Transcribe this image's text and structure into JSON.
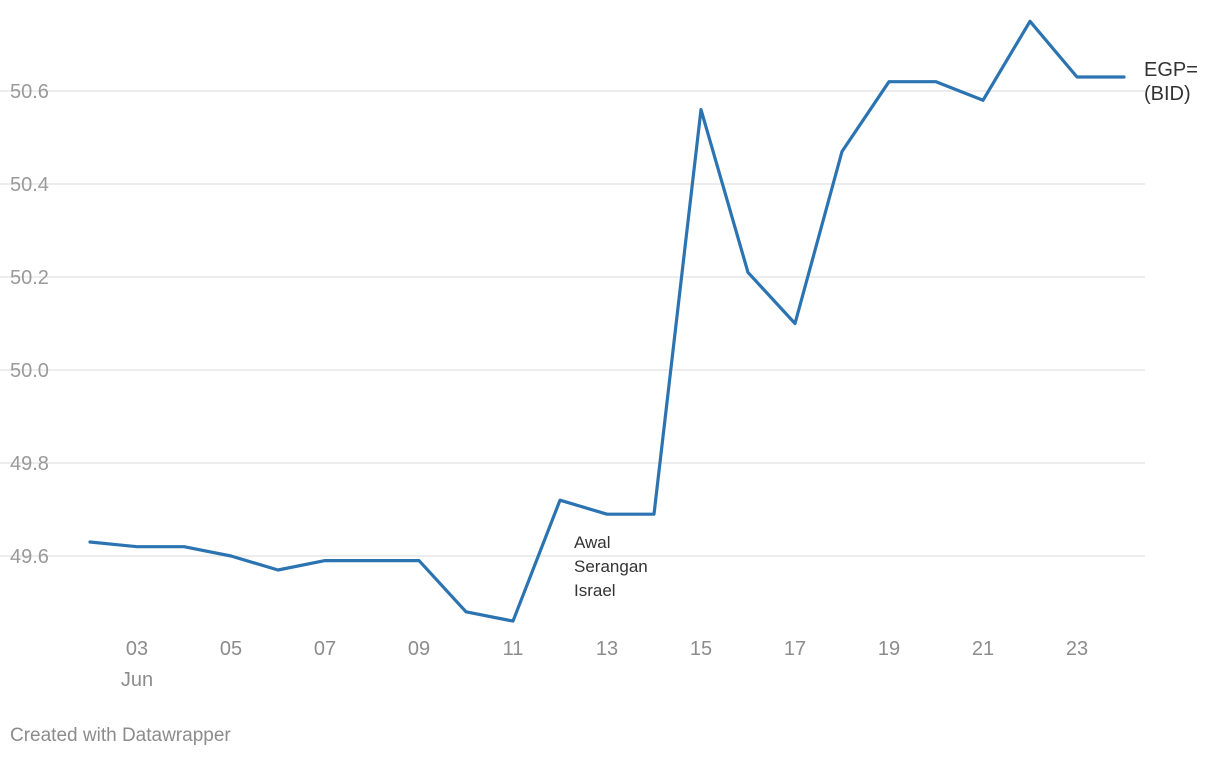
{
  "chart_data": {
    "type": "line",
    "title": "",
    "xlabel": "",
    "ylabel": "",
    "x": [
      "2024-06-02",
      "2024-06-03",
      "2024-06-04",
      "2024-06-05",
      "2024-06-06",
      "2024-06-07",
      "2024-06-08",
      "2024-06-09",
      "2024-06-10",
      "2024-06-11",
      "2024-06-12",
      "2024-06-13",
      "2024-06-14",
      "2024-06-15",
      "2024-06-16",
      "2024-06-17",
      "2024-06-18",
      "2024-06-19",
      "2024-06-20",
      "2024-06-21",
      "2024-06-22",
      "2024-06-23",
      "2024-06-24"
    ],
    "series": [
      {
        "name": "EGP=\n(BID)",
        "values": [
          49.63,
          49.62,
          49.62,
          49.6,
          49.57,
          49.59,
          49.59,
          49.59,
          49.48,
          49.46,
          49.72,
          49.69,
          49.69,
          50.56,
          50.21,
          50.1,
          50.47,
          50.62,
          50.62,
          50.58,
          50.75,
          50.63,
          50.63
        ]
      }
    ],
    "ylim": [
      49.6,
      50.6
    ],
    "y_ticks": [
      "49.6",
      "49.8",
      "50.0",
      "50.2",
      "50.4",
      "50.6"
    ],
    "x_tick_labels": [
      "03",
      "05",
      "07",
      "09",
      "11",
      "13",
      "15",
      "17",
      "19",
      "21",
      "23"
    ],
    "x_month_label": "Jun",
    "grid": true,
    "annotation": {
      "x": "2024-06-12",
      "lines": [
        "Awal",
        "Serangan",
        "Israel"
      ]
    },
    "colors": {
      "line": "#2b74b1"
    }
  },
  "footer": "Created with Datawrapper"
}
